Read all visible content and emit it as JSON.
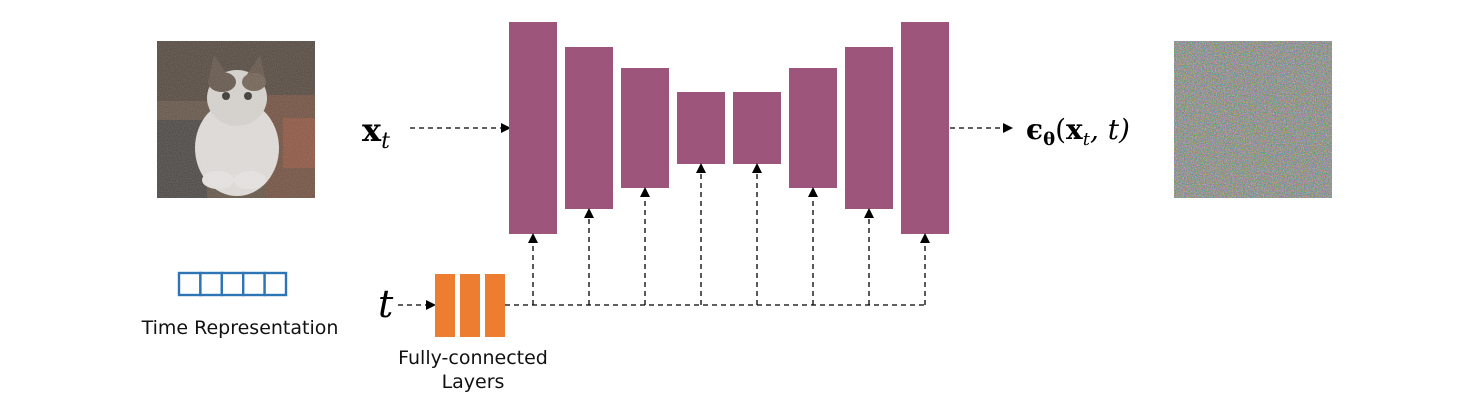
{
  "input": {
    "math_symbol": "x",
    "math_subscript": "t"
  },
  "time_input": {
    "math_symbol": "t"
  },
  "output": {
    "math_epsilon": "ϵ",
    "math_theta": "θ",
    "math_args_open": "(",
    "math_args_x": "x",
    "math_args_sub": "t",
    "math_args_rest": ", t)"
  },
  "time_representation": {
    "label": "Time Representation",
    "cells": 5
  },
  "fully_connected": {
    "label_line1": "Fully-connected",
    "label_line2": "Layers",
    "layer_count": 3
  },
  "unet": {
    "block_count": 8
  },
  "colors": {
    "unet_block": "#9e557c",
    "fc_layer": "#ed7d31",
    "time_rep_stroke": "#2e75b6",
    "arrow": "#000000"
  }
}
